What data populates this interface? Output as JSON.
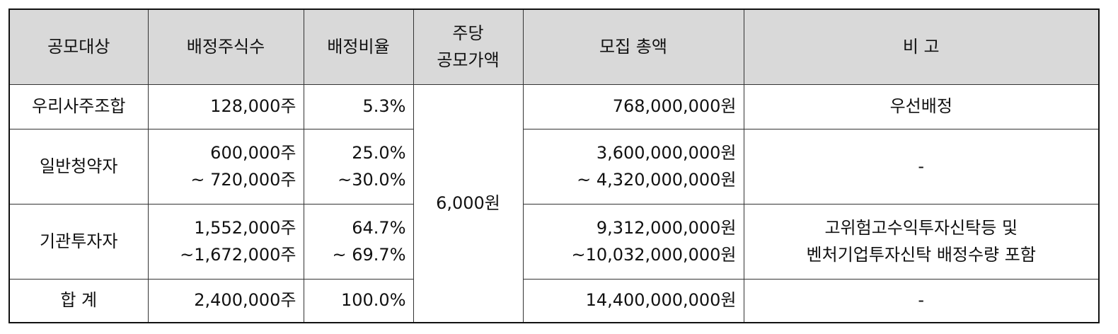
{
  "headers": {
    "target": "공모대상",
    "shares": "배정주식수",
    "ratio": "배정비율",
    "price_line1": "주당",
    "price_line2": "공모가액",
    "total": "모집 총액",
    "note": "비 고"
  },
  "price": "6,000원",
  "rows": [
    {
      "target": "우리사주조합",
      "shares": [
        "128,000주"
      ],
      "ratio": [
        "5.3%"
      ],
      "total": [
        "768,000,000원"
      ],
      "note": [
        "우선배정"
      ]
    },
    {
      "target": "일반청약자",
      "shares": [
        "600,000주",
        "~ 720,000주"
      ],
      "ratio": [
        "25.0%",
        "~30.0%"
      ],
      "total": [
        "3,600,000,000원",
        "~ 4,320,000,000원"
      ],
      "note": [
        "-"
      ]
    },
    {
      "target": "기관투자자",
      "shares": [
        "1,552,000주",
        "~1,672,000주"
      ],
      "ratio": [
        "64.7%",
        "~ 69.7%"
      ],
      "total": [
        "9,312,000,000원",
        "~10,032,000,000원"
      ],
      "note": [
        "고위험고수익투자신탁등 및",
        "벤처기업투자신탁 배정수량 포함"
      ]
    },
    {
      "target": "합 계",
      "shares": [
        "2,400,000주"
      ],
      "ratio": [
        "100.0%"
      ],
      "total": [
        "14,400,000,000원"
      ],
      "note": [
        "-"
      ]
    }
  ]
}
